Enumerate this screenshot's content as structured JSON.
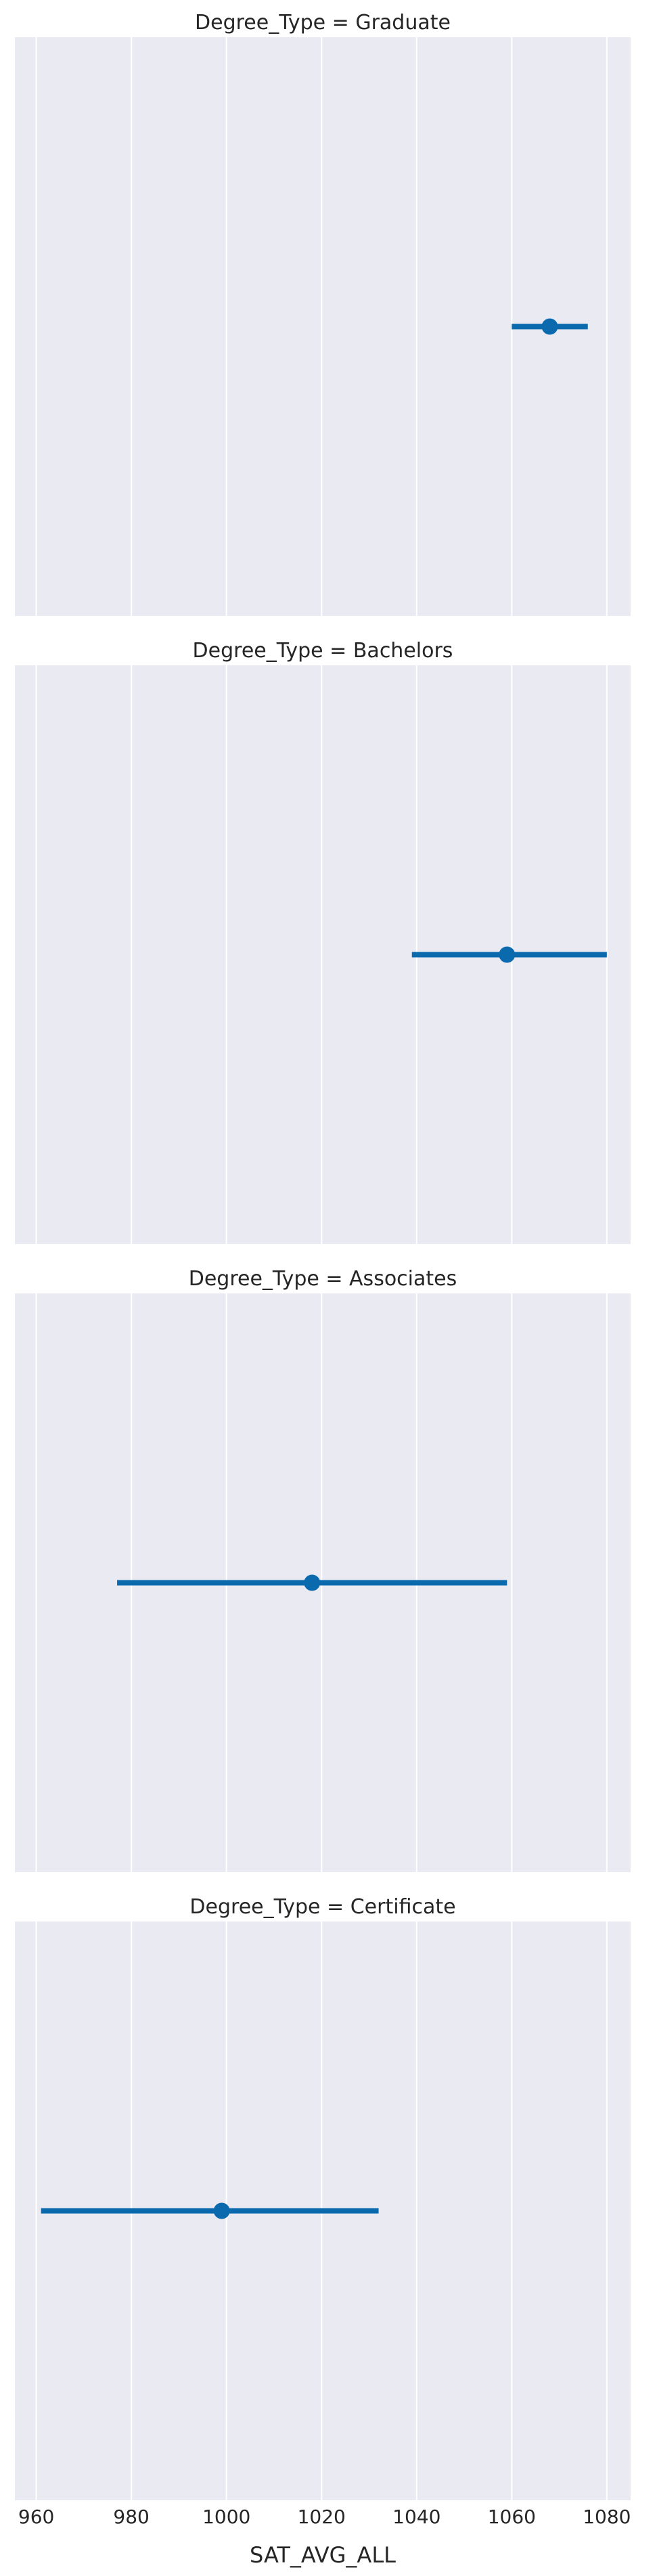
{
  "chart_data": {
    "type": "pointplot",
    "facet_titles": [
      "Degree_Type = Graduate",
      "Degree_Type = Bachelors",
      "Degree_Type = Associates",
      "Degree_Type = Certificate"
    ],
    "facets": [
      {
        "title_index": 0,
        "mean": 1068,
        "ci_low": 1060,
        "ci_high": 1076
      },
      {
        "title_index": 1,
        "mean": 1059,
        "ci_low": 1039,
        "ci_high": 1080
      },
      {
        "title_index": 2,
        "mean": 1018,
        "ci_low": 977,
        "ci_high": 1059
      },
      {
        "title_index": 3,
        "mean": 999,
        "ci_low": 961,
        "ci_high": 1032
      }
    ],
    "xlabel": "SAT_AVG_ALL",
    "xticks": [
      960,
      980,
      1000,
      1020,
      1040,
      1060,
      1080
    ],
    "xlim": [
      955.5,
      1085
    ],
    "grid": true,
    "colors": {
      "series": "#0a6aad",
      "panel_background": "#eaeaf2",
      "grid": "#ffffff",
      "text": "#262626"
    }
  }
}
